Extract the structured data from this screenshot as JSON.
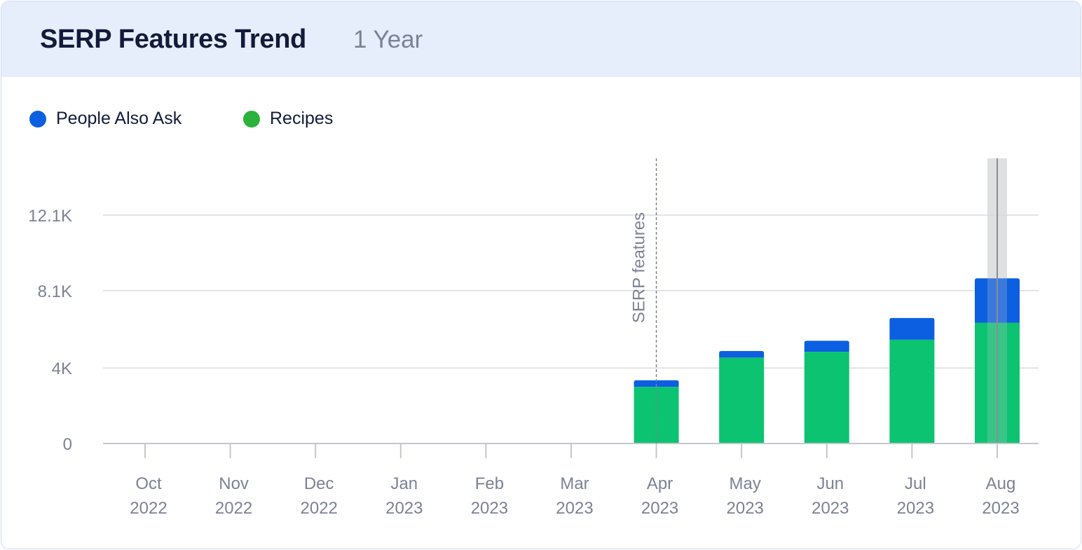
{
  "header": {
    "title": "SERP Features Trend",
    "period": "1 Year"
  },
  "colors": {
    "header_bg": "#e6eefb",
    "people_also_ask": "#0c5fe0",
    "recipes": "#0bc370",
    "legend_recipes_dot": "#2ab23a",
    "grid": "#d9dbe2",
    "axis_text": "#7c8294",
    "annotation_line": "#7c8294",
    "highlight_band": "#c8cace"
  },
  "legend": [
    {
      "label": "People Also Ask",
      "color": "#0c5fe0",
      "icon": "dot"
    },
    {
      "label": "Recipes",
      "color": "#2ab23a",
      "icon": "dot"
    }
  ],
  "chart_data": {
    "type": "bar",
    "stacked": true,
    "categories": [
      [
        "Oct",
        "2022"
      ],
      [
        "Nov",
        "2022"
      ],
      [
        "Dec",
        "2022"
      ],
      [
        "Jan",
        "2023"
      ],
      [
        "Feb",
        "2023"
      ],
      [
        "Mar",
        "2023"
      ],
      [
        "Apr",
        "2023"
      ],
      [
        "May",
        "2023"
      ],
      [
        "Jun",
        "2023"
      ],
      [
        "Jul",
        "2023"
      ],
      [
        "Aug",
        "2023"
      ]
    ],
    "series": [
      {
        "name": "Recipes",
        "color": "#0bc370",
        "values": [
          0,
          0,
          0,
          0,
          0,
          0,
          3000,
          4550,
          4860,
          5500,
          6400
        ]
      },
      {
        "name": "People Also Ask",
        "color": "#0c5fe0",
        "values": [
          0,
          0,
          0,
          0,
          0,
          0,
          350,
          350,
          580,
          1150,
          2350
        ]
      }
    ],
    "y_ticks": [
      {
        "value": 0,
        "label": "0"
      },
      {
        "value": 4000,
        "label": "4K"
      },
      {
        "value": 8100,
        "label": "8.1K"
      },
      {
        "value": 12100,
        "label": "12.1K"
      }
    ],
    "ylim": [
      0,
      15050
    ],
    "grid": true,
    "legend_position": "top-left",
    "annotations": [
      {
        "category_index": 6,
        "label": "SERP features",
        "style": "dashed-vertical-line"
      }
    ],
    "highlighted_category_index": 10
  }
}
